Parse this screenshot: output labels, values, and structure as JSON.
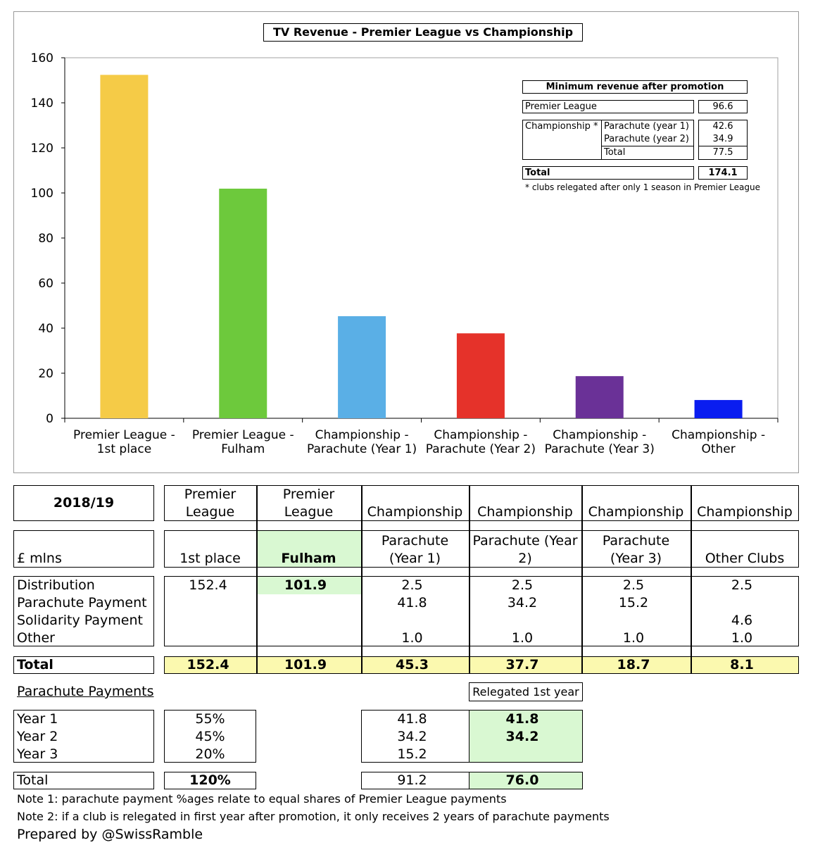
{
  "chart_data": {
    "type": "bar",
    "title": "TV Revenue - Premier League vs Championship",
    "categories": [
      [
        "Premier League -",
        "1st place"
      ],
      [
        "Premier League -",
        "Fulham"
      ],
      [
        "Championship -",
        "Parachute (Year 1)"
      ],
      [
        "Championship -",
        "Parachute (Year 2)"
      ],
      [
        "Championship -",
        "Parachute (Year 3)"
      ],
      [
        "Championship -",
        "Other"
      ]
    ],
    "values": [
      152.4,
      101.9,
      45.3,
      37.7,
      18.7,
      8.1
    ],
    "colors": [
      "#F5CB47",
      "#6DC93C",
      "#5AAFE6",
      "#E5322A",
      "#6A3197",
      "#0A1DF0"
    ],
    "ylim": [
      0,
      160
    ],
    "yticks": [
      0,
      20,
      40,
      60,
      80,
      100,
      120,
      140,
      160
    ],
    "xlabel": "",
    "ylabel": "",
    "grid": false,
    "legend": "none"
  },
  "inset": {
    "title": "Minimum revenue after promotion",
    "pl_label": "Premier League",
    "pl_value": "96.6",
    "champ_label": "Championship *",
    "para1_label": "Parachute (year 1)",
    "para1_value": "42.6",
    "para2_label": "Parachute (year 2)",
    "para2_value": "34.9",
    "sub_total_label": "Total",
    "sub_total_value": "77.5",
    "total_label": "Total",
    "total_value": "174.1",
    "footnote": "* clubs relegated after only 1 season in Premier League"
  },
  "table": {
    "season": "2018/19",
    "unit": "£ mlns",
    "headers": [
      {
        "top": "Premier",
        "mid": "League",
        "sub": "1st place"
      },
      {
        "top": "Premier",
        "mid": "League",
        "sub": "Fulham"
      },
      {
        "top": "",
        "mid": "Championship",
        "sub1": "Parachute",
        "sub2": "(Year 1)"
      },
      {
        "top": "",
        "mid": "Championship",
        "sub1": "Parachute (Year",
        "sub2": "2)"
      },
      {
        "top": "",
        "mid": "Championship",
        "sub1": "Parachute",
        "sub2": "(Year 3)"
      },
      {
        "top": "",
        "mid": "Championship",
        "sub": "Other Clubs"
      }
    ],
    "row_labels": [
      "Distribution",
      "Parachute Payment",
      "Solidarity Payment",
      "Other"
    ],
    "cols": [
      [
        "152.4",
        "",
        "",
        ""
      ],
      [
        "101.9",
        "",
        "",
        ""
      ],
      [
        "2.5",
        "41.8",
        "",
        "1.0"
      ],
      [
        "2.5",
        "34.2",
        "",
        "1.0"
      ],
      [
        "2.5",
        "15.2",
        "",
        "1.0"
      ],
      [
        "2.5",
        "",
        "4.6",
        "1.0"
      ]
    ],
    "total_label": "Total",
    "totals": [
      "152.4",
      "101.9",
      "45.3",
      "37.7",
      "18.7",
      "8.1"
    ]
  },
  "parachute": {
    "heading": "Parachute Payments",
    "relegated_label": "Relegated 1st year",
    "years": [
      "Year 1",
      "Year 2",
      "Year 3"
    ],
    "pcts": [
      "55%",
      "45%",
      "20%"
    ],
    "amounts": [
      "41.8",
      "34.2",
      "15.2"
    ],
    "relegated": [
      "41.8",
      "34.2",
      ""
    ],
    "total_label": "Total",
    "total_pct": "120%",
    "total_amount": "91.2",
    "total_relegated": "76.0"
  },
  "notes": {
    "note1": "Note 1: parachute payment %ages relate to equal shares of Premier League payments",
    "note2": "Note 2: if a club is relegated in first year after promotion, it only receives 2 years of parachute payments",
    "credit": "Prepared by @SwissRamble"
  }
}
